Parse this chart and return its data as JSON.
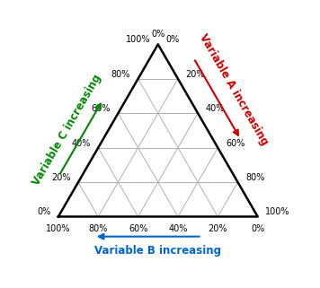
{
  "bg_color": "#ffffff",
  "triangle_color": "#000000",
  "grid_color": "#b0b0b0",
  "grid_linewidth": 0.7,
  "triangle_linewidth": 1.8,
  "tick_labels_pct": [
    "0%",
    "20%",
    "40%",
    "60%",
    "80%",
    "100%"
  ],
  "tick_values": [
    0.0,
    0.2,
    0.4,
    0.6,
    0.8,
    1.0
  ],
  "left_axis_label": "Variable C increasing",
  "right_axis_label": "Variable A increasing",
  "bottom_axis_label": "Variable B increasing",
  "left_label_color": "#008800",
  "right_label_color": "#cc0000",
  "bottom_label_color": "#0066cc",
  "label_fontsize": 8.5,
  "tick_fontsize": 7.0
}
